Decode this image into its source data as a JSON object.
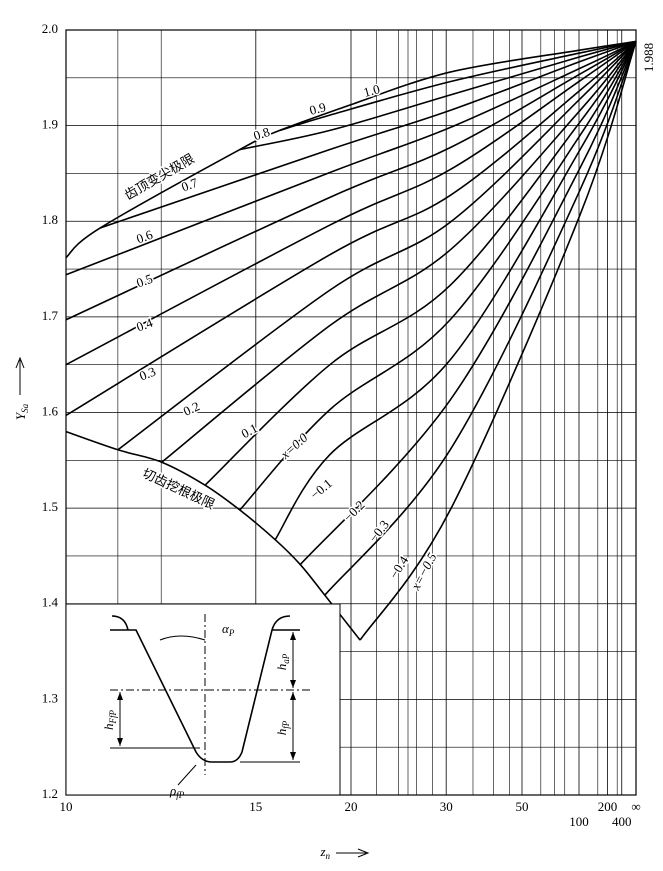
{
  "chart_data": {
    "type": "line",
    "ylabel": {
      "main": "Y",
      "sub": "Sa"
    },
    "xlabel": {
      "main": "z",
      "sub": "n"
    },
    "xlim": [
      0.1,
      0
    ],
    "ylim": [
      1.2,
      2.0
    ],
    "yticks": [
      {
        "value": 1.2,
        "label": "1.2"
      },
      {
        "value": 1.3,
        "label": "1.3"
      },
      {
        "value": 1.4,
        "label": "1.4"
      },
      {
        "value": 1.5,
        "label": "1.5"
      },
      {
        "value": 1.6,
        "label": "1.6"
      },
      {
        "value": 1.7,
        "label": "1.7"
      },
      {
        "value": 1.8,
        "label": "1.8"
      },
      {
        "value": 1.9,
        "label": "1.9"
      },
      {
        "value": 2.0,
        "label": "2.0"
      }
    ],
    "yminor": [
      1.25,
      1.35,
      1.45,
      1.55,
      1.65,
      1.75,
      1.85,
      1.95
    ],
    "xticks": [
      {
        "value": 0.1,
        "label": "10"
      },
      {
        "value": 0.0667,
        "label": "15"
      },
      {
        "value": 0.05,
        "label": "20"
      },
      {
        "value": 0.0333,
        "label": "30"
      },
      {
        "value": 0.02,
        "label": "50"
      },
      {
        "value": 0.01,
        "label": "100"
      },
      {
        "value": 0.005,
        "label": "200"
      },
      {
        "value": 0.0025,
        "label": "400"
      },
      {
        "value": 0,
        "label": "∞"
      }
    ],
    "xgrid": [
      0.0909,
      0.0833,
      0.0455,
      0.0417,
      0.04,
      0.0385,
      0.0357,
      0.0286,
      0.025,
      0.0222,
      0.0167,
      0.0143,
      0.0125,
      0.0067,
      0.0033
    ],
    "grid": true,
    "end_label": {
      "value": 1.988,
      "label": "1.988"
    },
    "series": [
      {
        "name": "1.0",
        "color": "#000",
        "x": [
          0.05,
          0.0326,
          0.0098,
          0
        ],
        "values": [
          1.922,
          1.956,
          1.979,
          1.988
        ]
      },
      {
        "name": "0.9",
        "color": "#000",
        "x": [
          0.0625,
          0.0537,
          0.0326,
          0.0098,
          0
        ],
        "values": [
          1.895,
          1.911,
          1.946,
          1.976,
          1.988
        ]
      },
      {
        "name": "0.8",
        "color": "#000",
        "x": [
          0.0695,
          0.0537,
          0.0326,
          0.0098,
          0
        ],
        "values": [
          1.875,
          1.895,
          1.932,
          1.972,
          1.988
        ]
      },
      {
        "name": "0.7",
        "color": "#000",
        "x": [
          0.094,
          0.0537,
          0.0326,
          0.0098,
          0
        ],
        "values": [
          1.793,
          1.875,
          1.916,
          1.967,
          1.988
        ]
      },
      {
        "name": "0.6",
        "color": "#000",
        "x": [
          0.1,
          0.0537,
          0.0326,
          0.0098,
          0
        ],
        "values": [
          1.744,
          1.851,
          1.898,
          1.96,
          1.988
        ]
      },
      {
        "name": "0.5",
        "color": "#000",
        "x": [
          0.1,
          0.0537,
          0.0326,
          0.0098,
          0
        ],
        "values": [
          1.697,
          1.825,
          1.877,
          1.954,
          1.988
        ]
      },
      {
        "name": "0.4",
        "color": "#000",
        "x": [
          0.1,
          0.0537,
          0.0326,
          0.0098,
          0
        ],
        "values": [
          1.65,
          1.796,
          1.854,
          1.947,
          1.988
        ]
      },
      {
        "name": "0.3",
        "color": "#000",
        "x": [
          0.1,
          0.0537,
          0.0326,
          0.0098,
          0
        ],
        "values": [
          1.597,
          1.765,
          1.827,
          1.937,
          1.988
        ]
      },
      {
        "name": "0.2",
        "color": "#000",
        "x": [
          0.0909,
          0.0537,
          0.0326,
          0.0098,
          0
        ],
        "values": [
          1.561,
          1.728,
          1.799,
          1.928,
          1.988
        ]
      },
      {
        "name": "0.1",
        "color": "#000",
        "x": [
          0.0832,
          0.0537,
          0.0326,
          0.0098,
          0
        ],
        "values": [
          1.548,
          1.691,
          1.77,
          1.916,
          1.988
        ]
      },
      {
        "name": "x=0.0",
        "color": "#000",
        "x": [
          0.0756,
          0.0537,
          0.0326,
          0.0098,
          0
        ],
        "values": [
          1.524,
          1.65,
          1.733,
          1.904,
          1.988
        ]
      },
      {
        "name": "−0.1",
        "color": "#000",
        "x": [
          0.0695,
          0.0537,
          0.0326,
          0.0098,
          0
        ],
        "values": [
          1.498,
          1.603,
          1.697,
          1.89,
          1.988
        ]
      },
      {
        "name": "−0.2",
        "color": "#000",
        "x": [
          0.0633,
          0.0537,
          0.0326,
          0.0098,
          0
        ],
        "values": [
          1.467,
          1.556,
          1.655,
          1.875,
          1.988
        ]
      },
      {
        "name": "−0.3",
        "color": "#000",
        "x": [
          0.0589,
          0.0326,
          0.0098,
          0
        ],
        "values": [
          1.441,
          1.613,
          1.856,
          1.988
        ]
      },
      {
        "name": "−0.4",
        "color": "#000",
        "x": [
          0.0546,
          0.0326,
          0.0098,
          0
        ],
        "values": [
          1.409,
          1.561,
          1.833,
          1.988
        ]
      },
      {
        "name": "x=−0.5",
        "color": "#000",
        "x": [
          0.0484,
          0.0326,
          0.0098,
          0
        ],
        "values": [
          1.362,
          1.498,
          1.807,
          1.988
        ]
      },
      {
        "name": "齿顶变尖极限",
        "color": "#000",
        "x": [
          0.1,
          0.094,
          0.0695,
          0.0625,
          0.05
        ],
        "values": [
          1.762,
          1.793,
          1.875,
          1.895,
          1.922
        ]
      },
      {
        "name": "切齿挖根极限",
        "color": "#000",
        "x": [
          0.1,
          0.0909,
          0.0832,
          0.0756,
          0.0695,
          0.0633,
          0.0589,
          0.0546,
          0.0484
        ],
        "values": [
          1.58,
          1.561,
          1.548,
          1.524,
          1.498,
          1.467,
          1.441,
          1.409,
          1.362
        ]
      }
    ]
  },
  "inset": {
    "alpha": {
      "main": "α",
      "sub": "P"
    },
    "h_a": {
      "main": "h",
      "sub": "aP"
    },
    "h_f": {
      "main": "h",
      "sub": "fP"
    },
    "h_ff": {
      "main": "h",
      "sub": "FfP"
    },
    "rho": {
      "main": "ρ",
      "sub": "fP"
    }
  }
}
